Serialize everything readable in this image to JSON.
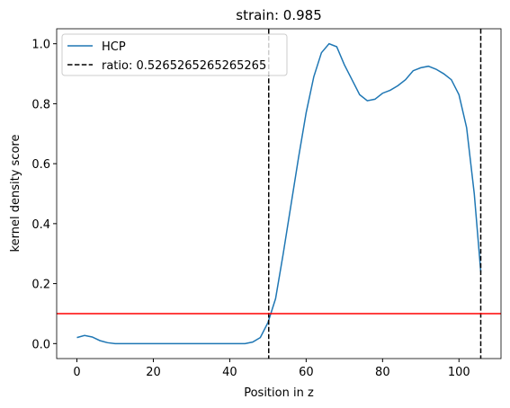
{
  "chart_data": {
    "type": "line",
    "title": "strain: 0.985",
    "xlabel": "Position in z",
    "ylabel": "kernel density score",
    "x": [
      0,
      2,
      4,
      6,
      8,
      10,
      20,
      30,
      40,
      44,
      46,
      48,
      50,
      52,
      54,
      56,
      58,
      60,
      62,
      64,
      66,
      68,
      70,
      72,
      74,
      76,
      78,
      80,
      82,
      84,
      86,
      88,
      90,
      92,
      94,
      96,
      98,
      100,
      102,
      104,
      105.7
    ],
    "series": [
      {
        "name": "HCP",
        "color": "#1f77b4",
        "values": [
          0.02,
          0.027,
          0.022,
          0.01,
          0.003,
          0.0,
          0.0,
          0.0,
          0.0,
          0.0,
          0.005,
          0.02,
          0.07,
          0.15,
          0.3,
          0.46,
          0.62,
          0.77,
          0.89,
          0.97,
          1.0,
          0.99,
          0.93,
          0.88,
          0.83,
          0.81,
          0.815,
          0.835,
          0.845,
          0.86,
          0.88,
          0.91,
          0.92,
          0.925,
          0.915,
          0.9,
          0.88,
          0.83,
          0.72,
          0.5,
          0.24
        ]
      }
    ],
    "vlines": {
      "name": "ratio: 0.5265265265265265",
      "color": "#000000",
      "values": [
        50.2,
        105.7
      ]
    },
    "hline": {
      "value": 0.1,
      "color": "#ff0000"
    },
    "xlim": [
      -5.3,
      111
    ],
    "ylim": [
      -0.05,
      1.05
    ],
    "xticks": [
      0,
      20,
      40,
      60,
      80,
      100
    ],
    "yticks": [
      {
        "value": 0,
        "label": "0.0"
      },
      0.2,
      0.4,
      0.6,
      0.8,
      {
        "value": 1,
        "label": "1.0"
      }
    ],
    "legend": "upper left"
  }
}
